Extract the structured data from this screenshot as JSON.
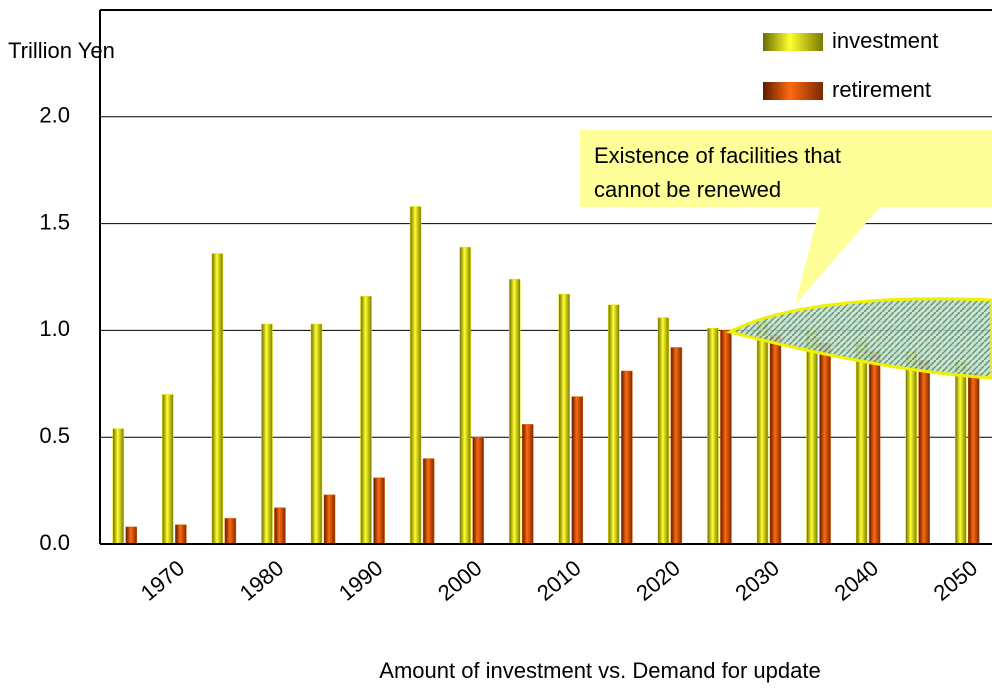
{
  "chart_data": {
    "type": "bar",
    "y_label": "Trillion Yen",
    "x_label": "Amount of investment vs. Demand for update",
    "annotation": "Existence of facilities that cannot be renewed",
    "categories": [
      null,
      "1970",
      null,
      "1980",
      null,
      "1990",
      null,
      "2000",
      null,
      "2010",
      null,
      "2020",
      null,
      "2030",
      null,
      "2040",
      null,
      "2050"
    ],
    "series": [
      {
        "name": "investment",
        "color": "#e8e800",
        "values": [
          0.54,
          0.7,
          1.36,
          1.03,
          1.03,
          1.16,
          1.58,
          1.39,
          1.24,
          1.17,
          1.12,
          1.06,
          1.01,
          1.04,
          1.0,
          0.95,
          0.9,
          0.85
        ]
      },
      {
        "name": "retirement",
        "color": "#e05a00",
        "values": [
          0.08,
          0.09,
          0.12,
          0.17,
          0.23,
          0.31,
          0.4,
          0.5,
          0.56,
          0.69,
          0.81,
          0.92,
          1.0,
          0.98,
          0.94,
          0.9,
          0.86,
          0.8
        ]
      }
    ],
    "ylim": [
      0,
      2.5
    ],
    "yticks": [
      {
        "value": 0,
        "label": "0.0"
      },
      {
        "value": 0.5,
        "label": "0.5"
      },
      {
        "value": 1,
        "label": "1.0"
      },
      {
        "value": 1.5,
        "label": "1.5"
      },
      {
        "value": 2,
        "label": "2.0"
      }
    ],
    "grid": true
  }
}
